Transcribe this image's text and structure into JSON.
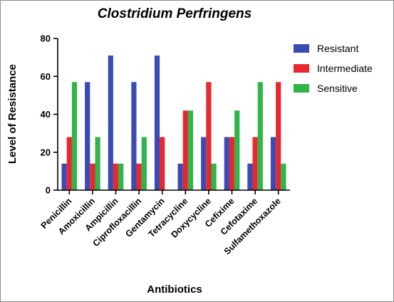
{
  "chart_data": {
    "type": "bar",
    "title": "Clostridium Perfringens",
    "xlabel": "Antibiotics",
    "ylabel": "Level of Resistance",
    "ylim": [
      0,
      80
    ],
    "yticks": [
      0,
      20,
      40,
      60,
      80
    ],
    "categories": [
      "Penicillin",
      "Amoxicillin",
      "Ampicillin",
      "Ciprofloxacillin",
      "Gentamycin",
      "Tetracycline",
      "Doxycycline",
      "Cefixime",
      "Cefotaxime",
      "Sulfamethoxazole"
    ],
    "series": [
      {
        "name": "Resistant",
        "color": "#3a4bb5",
        "values": [
          14,
          57,
          71,
          57,
          71,
          14,
          28,
          28,
          14,
          28
        ]
      },
      {
        "name": "Intermediate",
        "color": "#e8282e",
        "values": [
          28,
          14,
          14,
          14,
          28,
          42,
          57,
          28,
          28,
          57
        ]
      },
      {
        "name": "Sensitive",
        "color": "#2fb54a",
        "values": [
          57,
          28,
          14,
          28,
          0,
          42,
          14,
          42,
          57,
          14
        ]
      }
    ],
    "legend_position": "top-right",
    "grid": false
  }
}
